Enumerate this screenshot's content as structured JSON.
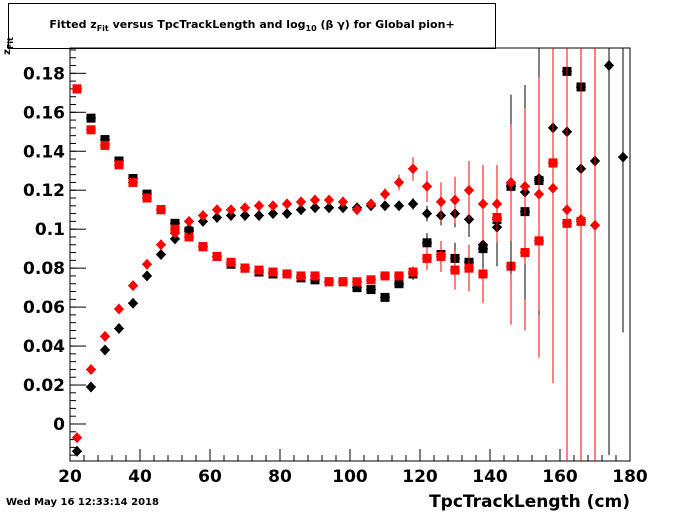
{
  "title": {
    "pre": "Fitted  z",
    "sub1": "Fit",
    "mid": "  versus TpcTrackLength and log",
    "sub2": "10",
    "post": " (β γ) for Global pion+"
  },
  "footer_timestamp": "Wed May 16 12:33:14 2018",
  "chart_data": {
    "type": "scatter",
    "xlabel": "TpcTrackLength (cm)",
    "ylabel": "z",
    "ylabel_sub": "Fit",
    "xlim": [
      20,
      180
    ],
    "ylim": [
      -0.019,
      0.193
    ],
    "xticks": [
      20,
      40,
      60,
      80,
      100,
      120,
      140,
      160,
      180
    ],
    "yticks": [
      0,
      0.02,
      0.04,
      0.06,
      0.08,
      0.1,
      0.12,
      0.14,
      0.16,
      0.18
    ],
    "ytick_labels": [
      "0",
      "0.02",
      "0.04",
      "0.06",
      "0.08",
      "0.1",
      "0.12",
      "0.14",
      "0.16",
      "0.18"
    ],
    "grid": false,
    "series": [
      {
        "marker": "square",
        "color": "#000000",
        "error": 0.001,
        "x": [
          22,
          26,
          30,
          34,
          38,
          42,
          46,
          50,
          54,
          58,
          62,
          66,
          70,
          74,
          78,
          82,
          86,
          90,
          94,
          98,
          102,
          106,
          110,
          114,
          118,
          122,
          126,
          130,
          134,
          138,
          142,
          146,
          150,
          154,
          158,
          162,
          166
        ],
        "y": [
          0.172,
          0.157,
          0.146,
          0.135,
          0.126,
          0.118,
          0.11,
          0.103,
          0.099,
          0.091,
          0.086,
          0.082,
          0.08,
          0.078,
          0.077,
          0.077,
          0.075,
          0.074,
          0.073,
          0.073,
          0.07,
          0.069,
          0.065,
          0.072,
          0.077,
          0.093,
          0.087,
          0.085,
          0.083,
          0.09,
          0.105,
          0.122,
          0.109,
          0.125,
          0.134,
          0.181,
          0.173
        ],
        "yerr": [
          0.001,
          0.001,
          0.001,
          0.001,
          0.001,
          0.001,
          0.001,
          0.001,
          0.001,
          0.001,
          0.001,
          0.001,
          0.001,
          0.001,
          0.001,
          0.001,
          0.001,
          0.001,
          0.001,
          0.001,
          0.001,
          0.001,
          0.001,
          0.002,
          0.003,
          0.005,
          0.006,
          0.008,
          0.009,
          0.012,
          0.016,
          0.047,
          0.055,
          0.07,
          0.1,
          0.12,
          0.11
        ]
      },
      {
        "marker": "square",
        "color": "#ff0000",
        "x": [
          22,
          26,
          30,
          34,
          38,
          42,
          46,
          50,
          54,
          58,
          62,
          66,
          70,
          74,
          78,
          82,
          86,
          90,
          94,
          98,
          102,
          106,
          110,
          114,
          118,
          122,
          126,
          130,
          134,
          138,
          142,
          146,
          150,
          154,
          158,
          162,
          166
        ],
        "y": [
          0.172,
          0.151,
          0.143,
          0.133,
          0.124,
          0.116,
          0.11,
          0.1,
          0.096,
          0.091,
          0.086,
          0.083,
          0.08,
          0.079,
          0.078,
          0.077,
          0.076,
          0.076,
          0.073,
          0.073,
          0.073,
          0.074,
          0.076,
          0.076,
          0.078,
          0.085,
          0.086,
          0.079,
          0.08,
          0.077,
          0.106,
          0.081,
          0.088,
          0.094,
          0.134,
          0.103,
          0.104
        ],
        "yerr": [
          0.001,
          0.001,
          0.001,
          0.001,
          0.001,
          0.001,
          0.001,
          0.001,
          0.001,
          0.001,
          0.001,
          0.001,
          0.001,
          0.001,
          0.001,
          0.001,
          0.001,
          0.001,
          0.001,
          0.001,
          0.001,
          0.001,
          0.001,
          0.002,
          0.003,
          0.006,
          0.008,
          0.01,
          0.012,
          0.015,
          0.02,
          0.03,
          0.04,
          0.06,
          0.09,
          0.11,
          0.12
        ]
      },
      {
        "marker": "diamond",
        "color": "#000000",
        "x": [
          22,
          26,
          30,
          34,
          38,
          42,
          46,
          50,
          54,
          58,
          62,
          66,
          70,
          74,
          78,
          82,
          86,
          90,
          94,
          98,
          102,
          106,
          110,
          114,
          118,
          122,
          126,
          130,
          134,
          138,
          142,
          146,
          150,
          154,
          158,
          162,
          166,
          170,
          174,
          178
        ],
        "y": [
          -0.014,
          0.019,
          0.038,
          0.049,
          0.062,
          0.076,
          0.087,
          0.095,
          0.1,
          0.104,
          0.106,
          0.107,
          0.107,
          0.107,
          0.108,
          0.108,
          0.11,
          0.111,
          0.111,
          0.111,
          0.111,
          0.112,
          0.112,
          0.112,
          0.113,
          0.108,
          0.107,
          0.108,
          0.105,
          0.092,
          0.101,
          0.122,
          0.119,
          0.126,
          0.152,
          0.15,
          0.131,
          0.135,
          0.184,
          0.137
        ],
        "yerr": [
          0.001,
          0.001,
          0.001,
          0.001,
          0.001,
          0.001,
          0.001,
          0.001,
          0.001,
          0.001,
          0.001,
          0.001,
          0.001,
          0.001,
          0.001,
          0.001,
          0.001,
          0.001,
          0.001,
          0.001,
          0.001,
          0.001,
          0.001,
          0.002,
          0.003,
          0.004,
          0.005,
          0.007,
          0.009,
          0.012,
          0.02,
          0.045,
          0.055,
          0.07,
          0.11,
          0.12,
          0.13,
          0.12,
          0.2,
          0.09
        ]
      },
      {
        "marker": "diamond",
        "color": "#ff0000",
        "x": [
          22,
          26,
          30,
          34,
          38,
          42,
          46,
          50,
          54,
          58,
          62,
          66,
          70,
          74,
          78,
          82,
          86,
          90,
          94,
          98,
          102,
          106,
          110,
          114,
          118,
          122,
          126,
          130,
          134,
          138,
          142,
          146,
          150,
          154,
          158,
          162,
          166,
          170
        ],
        "y": [
          -0.007,
          0.028,
          0.045,
          0.059,
          0.071,
          0.082,
          0.092,
          0.098,
          0.104,
          0.107,
          0.11,
          0.11,
          0.111,
          0.112,
          0.112,
          0.113,
          0.114,
          0.115,
          0.115,
          0.114,
          0.11,
          0.113,
          0.118,
          0.124,
          0.131,
          0.122,
          0.114,
          0.115,
          0.12,
          0.113,
          0.113,
          0.124,
          0.122,
          0.118,
          0.121,
          0.11,
          0.105,
          0.102
        ],
        "yerr": [
          0.001,
          0.001,
          0.001,
          0.001,
          0.001,
          0.001,
          0.001,
          0.001,
          0.001,
          0.001,
          0.001,
          0.001,
          0.001,
          0.001,
          0.001,
          0.001,
          0.001,
          0.001,
          0.001,
          0.001,
          0.001,
          0.002,
          0.003,
          0.004,
          0.006,
          0.008,
          0.01,
          0.012,
          0.015,
          0.02,
          0.02,
          0.03,
          0.04,
          0.06,
          0.1,
          0.14,
          0.15,
          0.16
        ]
      }
    ]
  }
}
